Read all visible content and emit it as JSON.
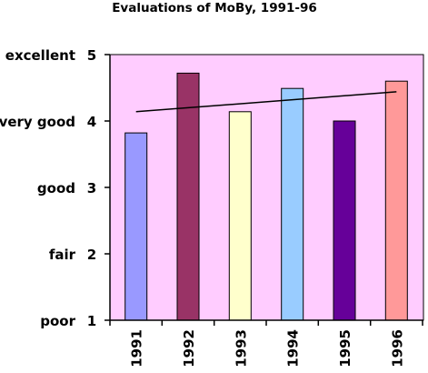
{
  "chart_data": {
    "type": "bar",
    "title": "Evaluations of MoBy, 1991-96",
    "categories": [
      "1991",
      "1992",
      "1993",
      "1994",
      "1995",
      "1996"
    ],
    "values": [
      3.82,
      4.72,
      4.14,
      4.49,
      4.0,
      4.6
    ],
    "bar_colors": [
      "#9999ff",
      "#993366",
      "#ffffcc",
      "#99ccff",
      "#660099",
      "#ff9999"
    ],
    "ylim": [
      1,
      5
    ],
    "yticks": [
      1,
      2,
      3,
      4,
      5
    ],
    "ytick_text_labels": [
      "poor",
      "fair",
      "good",
      "very good",
      "excellent"
    ],
    "trendline": {
      "start": 4.14,
      "end": 4.44
    },
    "plot_background": "#ffccff",
    "grid": false,
    "legend": "none"
  }
}
